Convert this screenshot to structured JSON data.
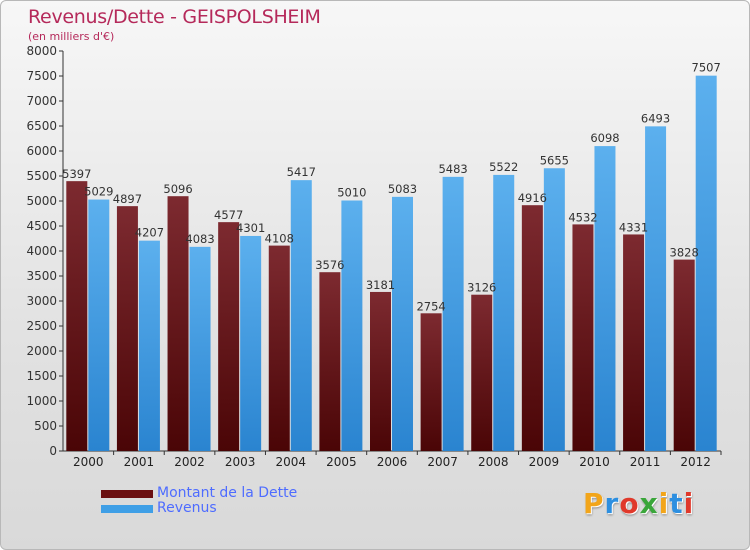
{
  "title": "Revenus/Dette - GEISPOLSHEIM",
  "subtitle": "(en milliers d'€)",
  "colors": {
    "debt": "#7a1418",
    "revenue": "#3f9fe6",
    "title": "#b5295a",
    "legend_text": "#4e6cff"
  },
  "legend": [
    {
      "label": "Montant de la Dette",
      "color": "#6b0f10"
    },
    {
      "label": "Revenus",
      "color": "#3f9fe6"
    }
  ],
  "logo": {
    "text": "Proxiti",
    "letters": [
      {
        "char": "P",
        "color": "#f2a51a"
      },
      {
        "char": "r",
        "color": "#2d8fe0"
      },
      {
        "char": "o",
        "color": "#e0392b"
      },
      {
        "char": "x",
        "color": "#3aa63a"
      },
      {
        "char": "i",
        "color": "#f2a51a"
      },
      {
        "char": "t",
        "color": "#2d8fe0"
      },
      {
        "char": "i",
        "color": "#e0392b"
      }
    ]
  },
  "chart_data": {
    "type": "bar",
    "title": "Revenus/Dette - GEISPOLSHEIM",
    "subtitle": "(en milliers d'€)",
    "xlabel": "",
    "ylabel": "",
    "ylim": [
      0,
      8000
    ],
    "ytick_step": 500,
    "categories": [
      "2000",
      "2001",
      "2002",
      "2003",
      "2004",
      "2005",
      "2006",
      "2007",
      "2008",
      "2009",
      "2010",
      "2011",
      "2012"
    ],
    "series": [
      {
        "name": "Montant de la Dette",
        "values": [
          5397,
          4897,
          5096,
          4577,
          4108,
          3576,
          3181,
          2754,
          3126,
          4916,
          4532,
          4331,
          3828
        ]
      },
      {
        "name": "Revenus",
        "values": [
          5029,
          4207,
          4083,
          4301,
          5417,
          5010,
          5083,
          5483,
          5522,
          5655,
          6098,
          6493,
          7507
        ]
      }
    ],
    "grid": false,
    "legend_position": "bottom-left"
  }
}
